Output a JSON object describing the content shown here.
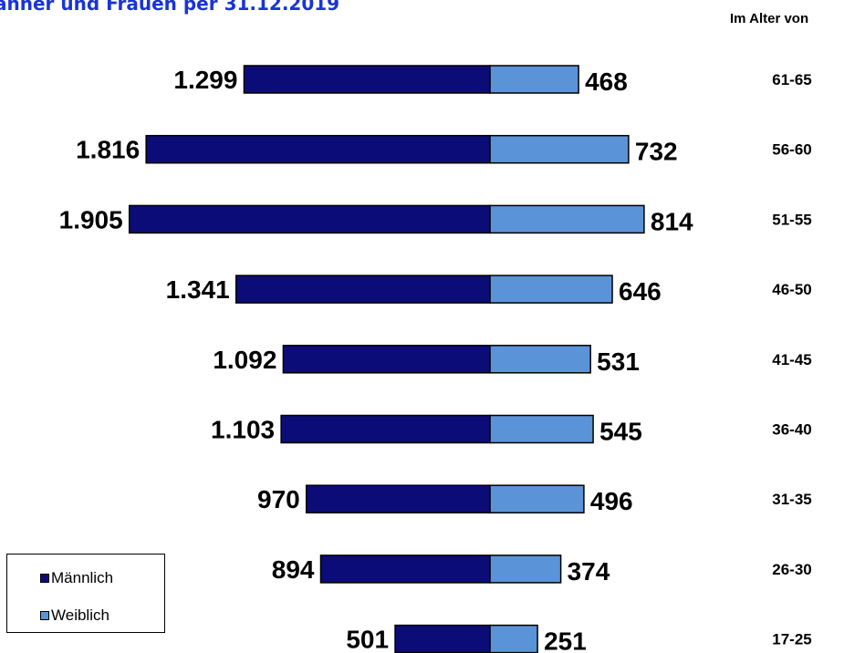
{
  "title": "änner und Frauen per 31.12.2019",
  "age_header": "Im Alter von",
  "colors": {
    "maennlich": "#0c0c78",
    "weiblich": "#5b93d8",
    "title": "#1a33d9"
  },
  "legend": {
    "placement": "bottom-left",
    "items": [
      {
        "label": "Männlich",
        "color": "#0c0c78"
      },
      {
        "label": "Weiblich",
        "color": "#5b93d8"
      }
    ]
  },
  "chart_data": {
    "type": "bar",
    "orientation": "horizontal-diverging",
    "categories": [
      "61-65",
      "56-60",
      "51-55",
      "46-50",
      "41-45",
      "36-40",
      "31-35",
      "26-30",
      "17-25"
    ],
    "series": [
      {
        "name": "Männlich",
        "values": [
          1299,
          1816,
          1905,
          1341,
          1092,
          1103,
          970,
          894,
          501
        ],
        "labels": [
          "1.299",
          "1.816",
          "1.905",
          "1.341",
          "1.092",
          "1.103",
          "970",
          "894",
          "501"
        ]
      },
      {
        "name": "Weiblich",
        "values": [
          468,
          732,
          814,
          646,
          531,
          545,
          496,
          374,
          251
        ],
        "labels": [
          "468",
          "732",
          "814",
          "646",
          "531",
          "545",
          "496",
          "374",
          "251"
        ]
      }
    ],
    "grid": false
  }
}
